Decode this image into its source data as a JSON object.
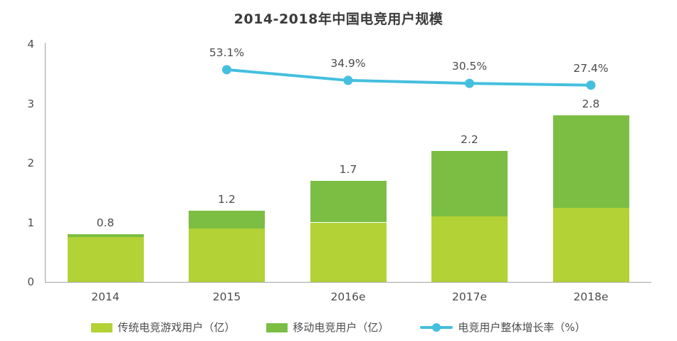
{
  "title": "2014-2018年中国电竞用户规模",
  "colors": {
    "traditional_bar": "#b2d235",
    "mobile_bar": "#7cbe44",
    "growth_line": "#45bfde",
    "text": "#4c4c4c",
    "axis": "#a3a3a3"
  },
  "chart_data": {
    "type": "bar",
    "subtype": "stacked-bars-with-line",
    "title": "2014-2018年中国电竞用户规模",
    "categories": [
      "2014",
      "2015",
      "2016e",
      "2017e",
      "2018e"
    ],
    "series": [
      {
        "name": "传统电竞游戏用户（亿）",
        "type": "bar",
        "color_key": "traditional_bar",
        "values": [
          0.75,
          0.9,
          1.0,
          1.1,
          1.25
        ]
      },
      {
        "name": "移动电竞用户（亿）",
        "type": "bar",
        "color_key": "mobile_bar",
        "values": [
          0.05,
          0.3,
          0.7,
          1.1,
          1.55
        ]
      },
      {
        "name": "电竞用户整体增长率（%）",
        "type": "line",
        "color_key": "growth_line",
        "values": [
          null,
          53.1,
          34.9,
          30.5,
          27.4
        ],
        "labels": [
          "",
          "53.1%",
          "34.9%",
          "30.5%",
          "27.4%"
        ],
        "plot_y_units": [
          null,
          3.57,
          3.39,
          3.34,
          3.31
        ]
      }
    ],
    "bar_total_labels": [
      "0.8",
      "1.2",
      "1.7",
      "2.2",
      "2.8"
    ],
    "y_axis": {
      "min": 0,
      "max": 4,
      "ticks": [
        0,
        1,
        2,
        3,
        4
      ]
    },
    "grid": false,
    "legend_position": "bottom"
  },
  "legend": {
    "items": [
      {
        "label": "传统电竞游戏用户（亿）",
        "marker": "swatch",
        "color_key": "traditional_bar"
      },
      {
        "label": "移动电竞用户（亿）",
        "marker": "swatch",
        "color_key": "mobile_bar"
      },
      {
        "label": "电竞用户整体增长率（%）",
        "marker": "line-dot",
        "color_key": "growth_line"
      }
    ]
  }
}
